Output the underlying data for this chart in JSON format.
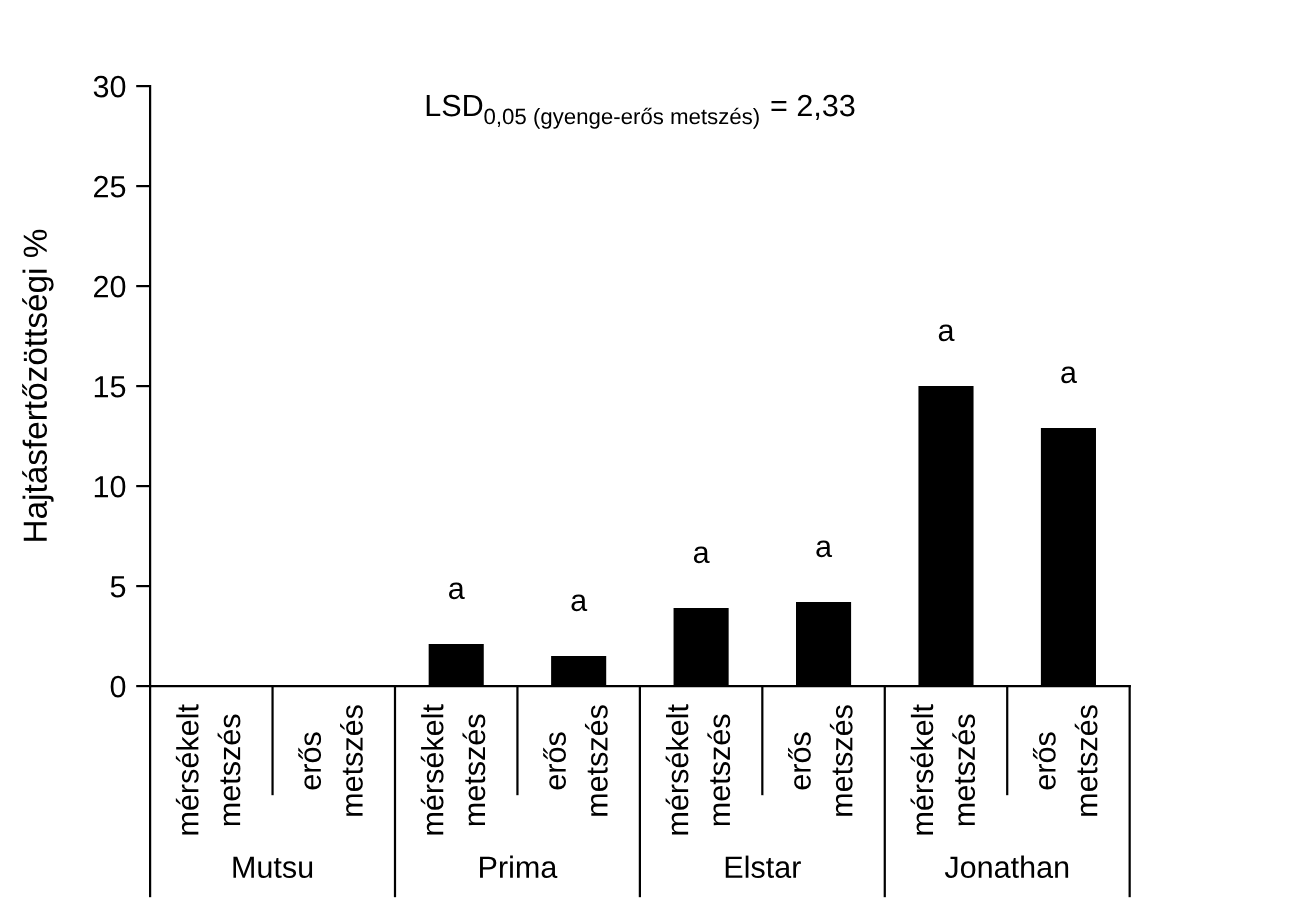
{
  "chart_data": {
    "type": "bar",
    "categories": [
      "mérsékelt metszés",
      "erős metszés",
      "mérsékelt metszés",
      "erős metszés",
      "mérsékelt metszés",
      "erős metszés",
      "mérsékelt metszés",
      "erős metszés"
    ],
    "values": [
      0,
      0,
      2.1,
      1.5,
      3.9,
      4.2,
      15.0,
      12.9
    ],
    "color": "#000000",
    "value_labels": [
      null,
      null,
      "a",
      "a",
      "a",
      "a",
      "a",
      "a"
    ],
    "ylabel": "Hajtásfertőzöttségi %",
    "ylim": [
      0,
      30
    ],
    "yticks": [
      0,
      5,
      10,
      15,
      20,
      25,
      30
    ],
    "annotations": [
      "LSD$_{0,05 (gyenge-erős metszés)}$ = 2,33",
      "Mutsu",
      "Prima",
      "Elstar",
      "Jonathan"
    ],
    "grid": false,
    "legend": false
  }
}
